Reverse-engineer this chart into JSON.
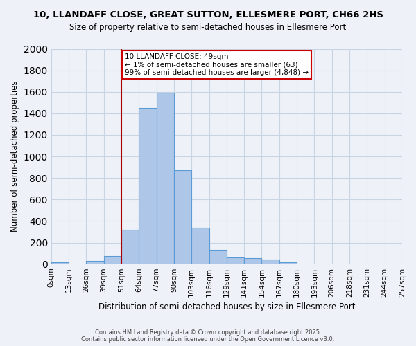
{
  "title_line1": "10, LLANDAFF CLOSE, GREAT SUTTON, ELLESMERE PORT, CH66 2HS",
  "title_line2": "Size of property relative to semi-detached houses in Ellesmere Port",
  "xlabel": "Distribution of semi-detached houses by size in Ellesmere Port",
  "ylabel": "Number of semi-detached properties",
  "footnote": "Contains HM Land Registry data © Crown copyright and database right 2025.\nContains public sector information licensed under the Open Government Licence v3.0.",
  "bin_labels": [
    "0sqm",
    "13sqm",
    "26sqm",
    "39sqm",
    "51sqm",
    "64sqm",
    "77sqm",
    "90sqm",
    "103sqm",
    "116sqm",
    "129sqm",
    "141sqm",
    "154sqm",
    "167sqm",
    "180sqm",
    "193sqm",
    "206sqm",
    "218sqm",
    "231sqm",
    "244sqm",
    "257sqm"
  ],
  "bar_heights": [
    15,
    0,
    30,
    75,
    320,
    1450,
    1590,
    870,
    340,
    130,
    60,
    55,
    40,
    20,
    0,
    0,
    0,
    0,
    0,
    0
  ],
  "bar_color": "#aec6e8",
  "bar_edge_color": "#5b9bd5",
  "grid_color": "#c8d4e3",
  "background_color": "#eef2f8",
  "red_line_x": 4,
  "annotation_text": "10 LLANDAFF CLOSE: 49sqm\n← 1% of semi-detached houses are smaller (63)\n99% of semi-detached houses are larger (4,848) →",
  "annotation_box_color": "#ffffff",
  "annotation_box_edge": "#cc0000",
  "ylim": [
    0,
    2000
  ],
  "yticks": [
    0,
    200,
    400,
    600,
    800,
    1000,
    1200,
    1400,
    1600,
    1800,
    2000
  ]
}
